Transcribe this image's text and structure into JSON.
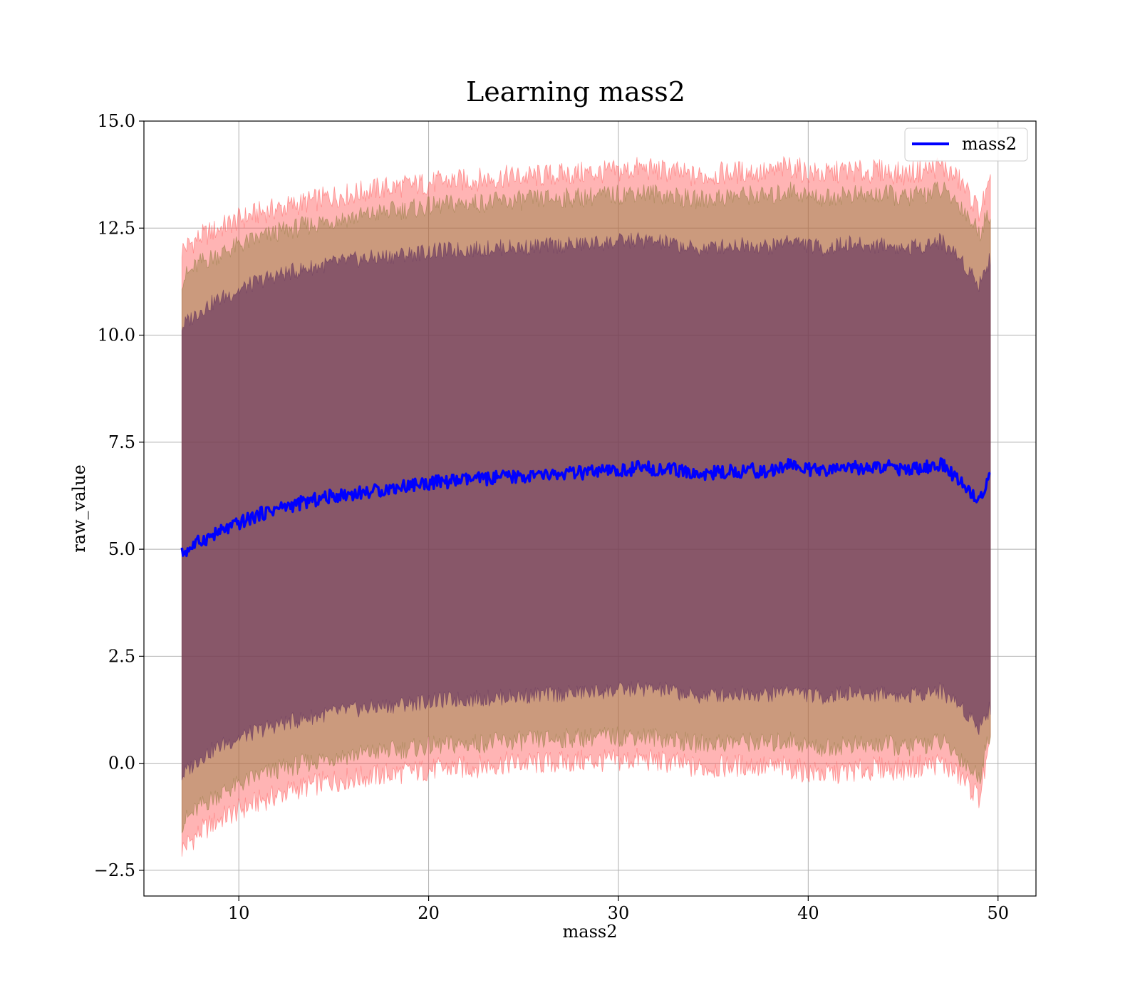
{
  "chart_data": {
    "type": "line",
    "title": "Learning mass2",
    "xlabel": "mass2",
    "ylabel": "raw_value",
    "xlim": [
      5,
      52
    ],
    "ylim": [
      -3.1,
      15.0
    ],
    "xticks": [
      10,
      20,
      30,
      40,
      50
    ],
    "yticks": [
      -2.5,
      0.0,
      2.5,
      5.0,
      7.5,
      10.0,
      12.5,
      15.0
    ],
    "ytick_labels": [
      "−2.5",
      "0.0",
      "2.5",
      "5.0",
      "7.5",
      "10.0",
      "12.5",
      "15.0"
    ],
    "grid": true,
    "legend": {
      "position": "top-right",
      "entries": [
        "mass2"
      ]
    },
    "colors": {
      "line": "#0000ff",
      "band_outer": "#ff4d4d",
      "band_middle": "#8b7a3a",
      "band_inner": "#5c2b5c",
      "grid": "#b0b0b0"
    },
    "series": [
      {
        "name": "mass2",
        "x": [
          7.0,
          8.0,
          9.0,
          10.0,
          11.0,
          12.0,
          13.0,
          14.0,
          15.0,
          16.0,
          17.0,
          18.0,
          19.0,
          20.0,
          21.0,
          22.0,
          23.0,
          24.0,
          25.0,
          26.0,
          27.0,
          28.0,
          29.0,
          30.0,
          31.0,
          32.0,
          33.0,
          34.0,
          35.0,
          36.0,
          37.0,
          38.0,
          39.0,
          40.0,
          41.0,
          42.0,
          43.0,
          44.0,
          45.0,
          46.0,
          47.0,
          48.0,
          49.0,
          49.6
        ],
        "y": [
          4.9,
          5.2,
          5.4,
          5.6,
          5.8,
          5.95,
          6.05,
          6.15,
          6.25,
          6.3,
          6.35,
          6.42,
          6.5,
          6.55,
          6.58,
          6.62,
          6.65,
          6.68,
          6.7,
          6.72,
          6.75,
          6.78,
          6.8,
          6.82,
          6.9,
          6.88,
          6.85,
          6.75,
          6.78,
          6.82,
          6.85,
          6.8,
          7.0,
          6.85,
          6.8,
          6.95,
          6.85,
          6.95,
          6.85,
          6.9,
          6.98,
          6.6,
          6.1,
          6.85
        ]
      }
    ],
    "bands": [
      {
        "level": "outer",
        "lower": [
          -2.0,
          -1.6,
          -1.3,
          -1.1,
          -0.9,
          -0.75,
          -0.6,
          -0.5,
          -0.4,
          -0.35,
          -0.3,
          -0.25,
          -0.2,
          -0.15,
          -0.12,
          -0.1,
          -0.05,
          0.0,
          0.0,
          0.0,
          0.02,
          0.05,
          0.05,
          0.05,
          0.1,
          0.05,
          0.0,
          -0.1,
          -0.1,
          -0.05,
          -0.05,
          -0.1,
          -0.1,
          -0.2,
          -0.25,
          -0.2,
          -0.15,
          -0.1,
          -0.15,
          -0.05,
          0.0,
          -0.3,
          -0.8,
          0.4
        ],
        "upper": [
          12.0,
          12.3,
          12.5,
          12.7,
          12.85,
          12.95,
          13.05,
          13.15,
          13.25,
          13.3,
          13.4,
          13.45,
          13.5,
          13.55,
          13.6,
          13.62,
          13.65,
          13.7,
          13.7,
          13.72,
          13.75,
          13.78,
          13.8,
          13.82,
          13.9,
          13.85,
          13.8,
          13.7,
          13.75,
          13.8,
          13.82,
          13.78,
          13.95,
          13.8,
          13.75,
          13.85,
          13.8,
          13.85,
          13.75,
          13.85,
          13.95,
          13.6,
          12.9,
          13.5
        ]
      },
      {
        "level": "middle",
        "lower": [
          -1.4,
          -1.0,
          -0.7,
          -0.5,
          -0.3,
          -0.15,
          -0.05,
          0.05,
          0.15,
          0.2,
          0.25,
          0.3,
          0.35,
          0.4,
          0.42,
          0.45,
          0.48,
          0.5,
          0.52,
          0.55,
          0.58,
          0.6,
          0.62,
          0.62,
          0.65,
          0.6,
          0.55,
          0.45,
          0.48,
          0.5,
          0.5,
          0.45,
          0.55,
          0.4,
          0.35,
          0.45,
          0.4,
          0.45,
          0.35,
          0.45,
          0.5,
          0.15,
          -0.35,
          0.8
        ],
        "upper": [
          11.3,
          11.7,
          11.9,
          12.1,
          12.25,
          12.4,
          12.5,
          12.6,
          12.7,
          12.75,
          12.82,
          12.9,
          12.95,
          13.0,
          13.05,
          13.08,
          13.1,
          13.12,
          13.15,
          13.18,
          13.2,
          13.22,
          13.25,
          13.28,
          13.35,
          13.3,
          13.25,
          13.15,
          13.2,
          13.25,
          13.28,
          13.22,
          13.4,
          13.25,
          13.2,
          13.3,
          13.25,
          13.3,
          13.2,
          13.3,
          13.4,
          13.05,
          12.4,
          12.9
        ]
      },
      {
        "level": "inner",
        "lower": [
          -0.3,
          0.15,
          0.4,
          0.6,
          0.75,
          0.9,
          1.0,
          1.1,
          1.18,
          1.25,
          1.3,
          1.35,
          1.4,
          1.45,
          1.48,
          1.5,
          1.52,
          1.55,
          1.58,
          1.6,
          1.62,
          1.65,
          1.68,
          1.7,
          1.75,
          1.72,
          1.68,
          1.55,
          1.6,
          1.62,
          1.65,
          1.6,
          1.75,
          1.6,
          1.55,
          1.65,
          1.6,
          1.65,
          1.55,
          1.65,
          1.7,
          1.35,
          0.85,
          1.3
        ],
        "upper": [
          10.2,
          10.6,
          10.85,
          11.05,
          11.25,
          11.4,
          11.5,
          11.6,
          11.68,
          11.75,
          11.8,
          11.85,
          11.9,
          11.95,
          11.98,
          12.0,
          12.02,
          12.05,
          12.05,
          12.08,
          12.1,
          12.12,
          12.15,
          12.18,
          12.22,
          12.18,
          12.12,
          12.0,
          12.05,
          12.1,
          12.12,
          12.05,
          12.25,
          12.1,
          12.02,
          12.15,
          12.08,
          12.12,
          12.02,
          12.1,
          12.2,
          11.8,
          11.2,
          11.8
        ]
      }
    ]
  }
}
